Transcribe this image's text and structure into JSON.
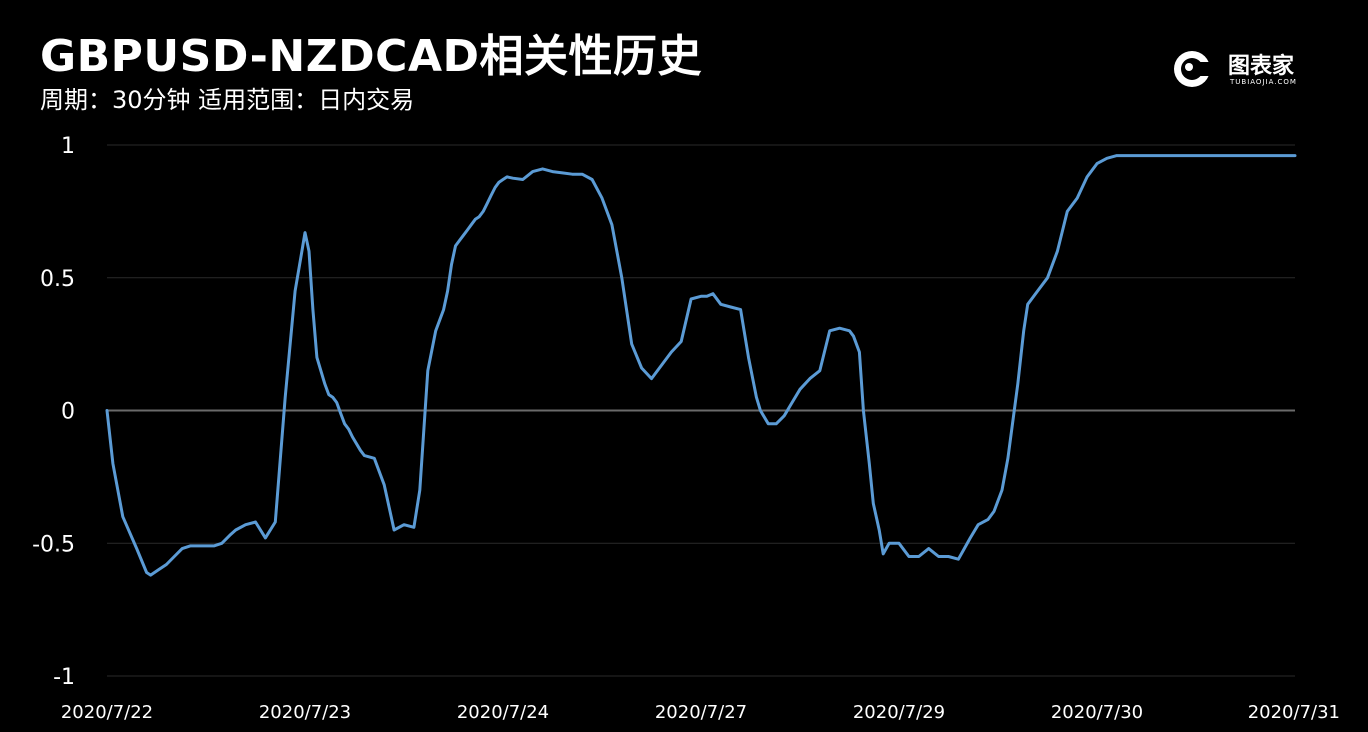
{
  "header": {
    "title": "GBPUSD-NZDCAD相关性历史",
    "subtitle": "周期：30分钟  适用范围：日内交易"
  },
  "logo": {
    "name": "图表家",
    "sub": "TUBIAOJIA.COM",
    "icon": "robot-head-icon"
  },
  "colors": {
    "background": "#000000",
    "line": "#5b9bd5",
    "grid": "#2a2a2a",
    "zero_line": "#6a6a6a",
    "text": "#ffffff"
  },
  "chart_data": {
    "type": "line",
    "x_tick_labels": [
      "2020/7/22",
      "2020/7/23",
      "2020/7/24",
      "2020/7/27",
      "2020/7/29",
      "2020/7/30",
      "2020/7/31"
    ],
    "y_tick_labels": [
      "1",
      "0.5",
      "0",
      "-0.5",
      "-1"
    ],
    "y_ticks": [
      1,
      0.5,
      0,
      -0.5,
      -1
    ],
    "ylim": [
      -1,
      1
    ],
    "xlim": [
      0,
      6
    ],
    "grid": "horizontal",
    "legend": "none",
    "series": [
      {
        "x": [
          0,
          0.03,
          0.08,
          0.15,
          0.2,
          0.22,
          0.26,
          0.3,
          0.34,
          0.38,
          0.42,
          0.48,
          0.5,
          0.54,
          0.58,
          0.62,
          0.65,
          0.7,
          0.75,
          0.8,
          0.85,
          0.9,
          0.95,
          0.98,
          1.0,
          1.02,
          1.04,
          1.06,
          1.1,
          1.12,
          1.14,
          1.16,
          1.18,
          1.2,
          1.22,
          1.24,
          1.28,
          1.3,
          1.35,
          1.4,
          1.45,
          1.5,
          1.55,
          1.58,
          1.62,
          1.66,
          1.7,
          1.72,
          1.74,
          1.76,
          1.78,
          1.8,
          1.82,
          1.84,
          1.86,
          1.88,
          1.9,
          1.92,
          1.94,
          1.96,
          1.98,
          2.0,
          2.02,
          2.05,
          2.1,
          2.15,
          2.2,
          2.25,
          2.3,
          2.35,
          2.4,
          2.45,
          2.5,
          2.55,
          2.6,
          2.65,
          2.7,
          2.75,
          2.8,
          2.85,
          2.9,
          2.95,
          3.0,
          3.03,
          3.06,
          3.1,
          3.15,
          3.2,
          3.24,
          3.28,
          3.3,
          3.34,
          3.38,
          3.42,
          3.46,
          3.5,
          3.55,
          3.6,
          3.65,
          3.7,
          3.75,
          3.77,
          3.8,
          3.82,
          3.85,
          3.87,
          3.9,
          3.92,
          3.95,
          4.0,
          4.05,
          4.1,
          4.15,
          4.2,
          4.25,
          4.3,
          4.33,
          4.36,
          4.4,
          4.45,
          4.48,
          4.52,
          4.55,
          4.6,
          4.63,
          4.65,
          4.7,
          4.75,
          4.8,
          4.85,
          4.9,
          4.95,
          5.0,
          5.05,
          5.1,
          5.15,
          5.2,
          5.25,
          5.28,
          5.32,
          5.35,
          5.38,
          5.4,
          5.45,
          5.5,
          5.55,
          5.6,
          5.65,
          5.7,
          5.75,
          5.8,
          5.85,
          5.9,
          5.95,
          6.0
        ],
        "values": [
          0.0,
          -0.2,
          -0.4,
          -0.52,
          -0.61,
          -0.62,
          -0.6,
          -0.58,
          -0.55,
          -0.52,
          -0.51,
          -0.51,
          -0.51,
          -0.51,
          -0.5,
          -0.47,
          -0.45,
          -0.43,
          -0.42,
          -0.48,
          -0.42,
          0.05,
          0.45,
          0.58,
          0.67,
          0.6,
          0.38,
          0.2,
          0.1,
          0.06,
          0.05,
          0.03,
          -0.01,
          -0.05,
          -0.07,
          -0.1,
          -0.15,
          -0.17,
          -0.18,
          -0.28,
          -0.45,
          -0.43,
          -0.44,
          -0.3,
          0.15,
          0.3,
          0.38,
          0.45,
          0.55,
          0.62,
          0.64,
          0.66,
          0.68,
          0.7,
          0.72,
          0.73,
          0.75,
          0.78,
          0.81,
          0.84,
          0.86,
          0.87,
          0.88,
          0.875,
          0.87,
          0.9,
          0.91,
          0.9,
          0.895,
          0.89,
          0.89,
          0.87,
          0.8,
          0.7,
          0.5,
          0.25,
          0.16,
          0.12,
          0.17,
          0.22,
          0.26,
          0.42,
          0.43,
          0.43,
          0.44,
          0.4,
          0.39,
          0.38,
          0.2,
          0.05,
          0.0,
          -0.05,
          -0.05,
          -0.02,
          0.03,
          0.08,
          0.12,
          0.15,
          0.3,
          0.31,
          0.3,
          0.28,
          0.22,
          0.0,
          -0.2,
          -0.35,
          -0.45,
          -0.54,
          -0.5,
          -0.5,
          -0.55,
          -0.55,
          -0.52,
          -0.55,
          -0.55,
          -0.56,
          -0.52,
          -0.48,
          -0.43,
          -0.41,
          -0.38,
          -0.3,
          -0.18,
          0.1,
          0.3,
          0.4,
          0.45,
          0.5,
          0.6,
          0.75,
          0.8,
          0.88,
          0.93,
          0.95,
          0.96,
          0.96,
          0.96,
          0.96,
          0.96,
          0.96,
          0.96,
          0.96,
          0.96,
          0.96,
          0.96,
          0.96,
          0.96,
          0.96,
          0.96,
          0.96,
          0.96,
          0.96,
          0.96,
          0.96,
          0.96
        ]
      }
    ]
  }
}
